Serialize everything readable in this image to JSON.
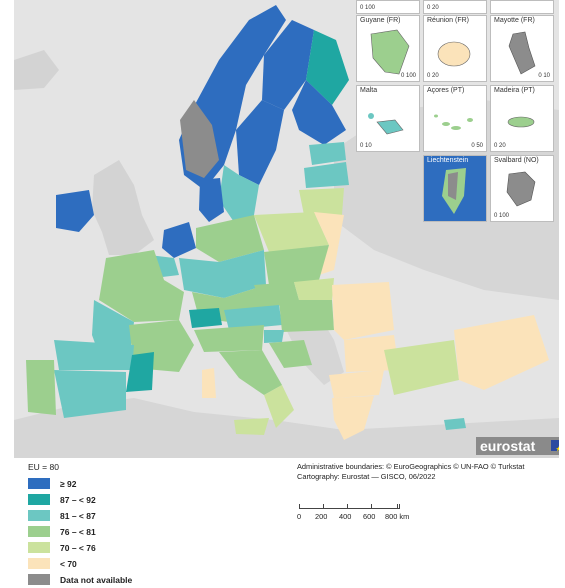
{
  "colors": {
    "c1": "#2e6dbf",
    "c2": "#1fa7a2",
    "c3": "#6cc7c2",
    "c4": "#9ccf8e",
    "c5": "#cbe29d",
    "c6": "#fbe3ba",
    "na": "#8c8c8c",
    "sea": "#e4e4e4",
    "nonEU": "#dcdcdc"
  },
  "insets": [
    {
      "title": "",
      "scale": "0  100"
    },
    {
      "title": "",
      "scale": "0  20"
    },
    {
      "title": "",
      "scale": ""
    },
    {
      "title": "Guyane (FR)",
      "scale": "0  100"
    },
    {
      "title": "Réunion (FR)",
      "scale": "0  20"
    },
    {
      "title": "Mayotte (FR)",
      "scale": "0  10"
    },
    {
      "title": "Malta",
      "scale": "0  10"
    },
    {
      "title": "Açores (PT)",
      "scale": "0  50"
    },
    {
      "title": "Madeira (PT)",
      "scale": "0  20"
    },
    {
      "title": "Liechtenstein",
      "scale": ""
    },
    {
      "title": "Svalbard (NO)",
      "scale": "0  100"
    }
  ],
  "legend": {
    "title": "EU = 80",
    "items": [
      {
        "label": "≥ 92",
        "color": "c1"
      },
      {
        "label": "87 – < 92",
        "color": "c2"
      },
      {
        "label": "81 – < 87",
        "color": "c3"
      },
      {
        "label": "76 – < 81",
        "color": "c4"
      },
      {
        "label": "70 – < 76",
        "color": "c5"
      },
      {
        "label": "< 70",
        "color": "c6"
      },
      {
        "label": "Data not available",
        "color": "na"
      }
    ]
  },
  "credits": {
    "line1": "Administrative boundaries: © EuroGeographics © UN-FAO © Turkstat",
    "line2": "Cartography: Eurostat — GISCO, 06/2022"
  },
  "scalebar": {
    "labels": [
      "0",
      "200",
      "400",
      "600",
      "800 km"
    ]
  },
  "logo": {
    "text": "eurostat"
  }
}
